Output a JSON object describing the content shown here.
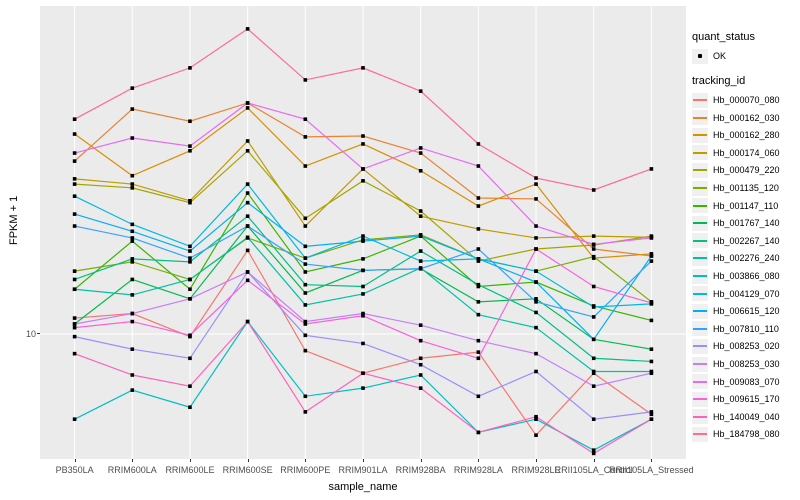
{
  "axes": {
    "y_tick_label": "10"
  },
  "legend": {
    "quant_status_title": "quant_status",
    "quant_status_value": "OK",
    "tracking_id_title": "tracking_id"
  },
  "theme": {
    "panel_background": "#EBEBEB",
    "gridline_color": "#FFFFFF",
    "marker_color": "#000000",
    "tick_text_color": "#4D4D4D",
    "legend_key_background": "#F0F0F0"
  },
  "chart_data": {
    "type": "line",
    "title": "",
    "xlabel": "sample_name",
    "ylabel": "FPKM + 1",
    "yscale": "log10",
    "ybreaks": [
      10
    ],
    "ylim": [
      3.8,
      124
    ],
    "grid": true,
    "legend_position": "right",
    "point_marker": "small black point (quant_status = OK)",
    "categories": [
      "PB350LA",
      "RRIM600LA",
      "RRIM600LE",
      "RRIM600SE",
      "RRIM600PE",
      "RRIM901LA",
      "RRIM928BA",
      "RRIM928LA",
      "RRIM928LE",
      "RRII105LA_Control",
      "RRII105LA_Stressed"
    ],
    "series": [
      {
        "name": "Hb_000070_080",
        "color": "#F8766D",
        "values": [
          11.3,
          11.7,
          9.8,
          19.0,
          8.8,
          7.4,
          8.3,
          8.7,
          4.6,
          7.4,
          5.4
        ]
      },
      {
        "name": "Hb_000162_030",
        "color": "#EA8331",
        "values": [
          37.7,
          56.2,
          51.2,
          58.9,
          45.4,
          45.7,
          40.1,
          28.4,
          28.2,
          19.2,
          18.2
        ]
      },
      {
        "name": "Hb_000162_280",
        "color": "#D89000",
        "values": [
          46.4,
          33.7,
          40.8,
          56.7,
          36.3,
          43.0,
          35.0,
          26.7,
          31.6,
          17.9,
          18.5
        ]
      },
      {
        "name": "Hb_000174_060",
        "color": "#C09B00",
        "values": [
          32.9,
          31.6,
          27.8,
          44.0,
          22.9,
          35.5,
          24.7,
          22.4,
          20.9,
          21.2,
          21.0
        ]
      },
      {
        "name": "Hb_000479_220",
        "color": "#A3A500",
        "values": [
          31.6,
          30.7,
          27.4,
          40.8,
          24.3,
          32.4,
          25.7,
          17.5,
          19.2,
          19.8,
          21.2
        ]
      },
      {
        "name": "Hb_001135_120",
        "color": "#7CAE00",
        "values": [
          16.2,
          17.4,
          15.2,
          20.9,
          17.9,
          20.6,
          21.4,
          17.8,
          16.2,
          18.1,
          12.8
        ]
      },
      {
        "name": "Hb_001147_110",
        "color": "#39B600",
        "values": [
          14.1,
          20.4,
          14.1,
          29.5,
          16.1,
          17.8,
          21.2,
          14.4,
          14.9,
          12.4,
          11.1
        ]
      },
      {
        "name": "Hb_001767_140",
        "color": "#00BB4E",
        "values": [
          10.8,
          15.2,
          13.1,
          22.9,
          13.7,
          16.3,
          16.5,
          12.8,
          13.1,
          9.6,
          8.9
        ]
      },
      {
        "name": "Hb_002267_140",
        "color": "#00C087",
        "values": [
          15.2,
          17.8,
          17.4,
          24.7,
          14.6,
          14.4,
          18.9,
          14.6,
          11.8,
          8.3,
          8.1
        ]
      },
      {
        "name": "Hb_002276_240",
        "color": "#00C1A3",
        "values": [
          14.1,
          13.5,
          15.2,
          21.0,
          12.5,
          13.6,
          16.6,
          11.6,
          10.5,
          7.5,
          7.5
        ]
      },
      {
        "name": "Hb_003866_080",
        "color": "#00BFC4",
        "values": [
          5.2,
          6.5,
          5.7,
          11.0,
          6.2,
          6.6,
          7.3,
          4.7,
          5.2,
          4.1,
          5.2
        ]
      },
      {
        "name": "Hb_004129_070",
        "color": "#00BAE0",
        "values": [
          28.8,
          23.2,
          19.6,
          31.6,
          17.9,
          21.2,
          17.5,
          17.8,
          16.2,
          12.3,
          12.6
        ]
      },
      {
        "name": "Hb_006615_120",
        "color": "#00B0F6",
        "values": [
          25.1,
          22.0,
          18.9,
          27.4,
          19.6,
          20.4,
          21.2,
          17.8,
          14.9,
          9.6,
          18.2
        ]
      },
      {
        "name": "Hb_007810_110",
        "color": "#35A2FF",
        "values": [
          22.9,
          20.9,
          17.9,
          22.9,
          17.1,
          16.3,
          16.5,
          19.2,
          12.8,
          11.4,
          17.5
        ]
      },
      {
        "name": "Hb_008253_020",
        "color": "#9590FF",
        "values": [
          9.8,
          8.9,
          8.3,
          16.1,
          9.9,
          9.3,
          7.9,
          6.2,
          7.5,
          5.2,
          5.5
        ]
      },
      {
        "name": "Hb_008253_030",
        "color": "#C77CFF",
        "values": [
          10.8,
          11.7,
          13.1,
          16.1,
          11.0,
          11.7,
          10.7,
          9.5,
          8.6,
          6.7,
          7.4
        ]
      },
      {
        "name": "Hb_009083_070",
        "color": "#E76BF3",
        "values": [
          40.1,
          45.0,
          42.3,
          58.9,
          52.0,
          35.5,
          41.7,
          36.3,
          22.9,
          19.9,
          20.9
        ]
      },
      {
        "name": "Hb_009615_170",
        "color": "#FA62DB",
        "values": [
          10.5,
          11.0,
          9.9,
          15.1,
          10.8,
          11.5,
          9.5,
          8.3,
          19.2,
          14.4,
          12.7
        ]
      },
      {
        "name": "Hb_140049_040",
        "color": "#FF62BC",
        "values": [
          8.6,
          7.3,
          6.7,
          11.0,
          5.5,
          7.4,
          6.6,
          4.7,
          5.3,
          4.0,
          5.2
        ]
      },
      {
        "name": "Hb_184798_080",
        "color": "#FF6A98",
        "values": [
          52.0,
          66.0,
          77.1,
          104.0,
          70.3,
          77.1,
          64.5,
          43.0,
          33.1,
          30.2,
          35.5
        ]
      }
    ]
  }
}
